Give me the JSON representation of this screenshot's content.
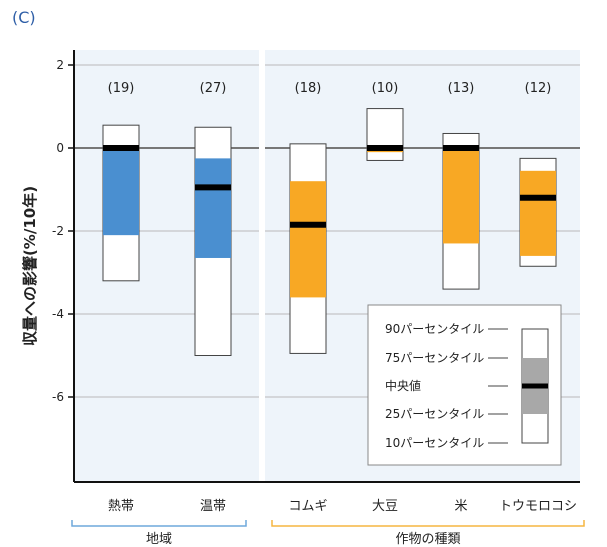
{
  "panel_label": "(C)",
  "chart_data": {
    "type": "box",
    "ylabel": "収量への影響(%/10年)",
    "ylim": [
      -8,
      2.4
    ],
    "yticks": [
      2,
      0,
      -2,
      -4,
      -6
    ],
    "categories": [
      "熱帯",
      "温帯",
      "コムギ",
      "大豆",
      "米",
      "トウモロコシ"
    ],
    "groups": [
      {
        "label": "地域",
        "categories": [
          "熱帯",
          "温帯"
        ],
        "color": "#6fa8dc"
      },
      {
        "label": "作物の種類",
        "categories": [
          "コムギ",
          "大豆",
          "米",
          "トウモロコシ"
        ],
        "color": "#f5b640"
      }
    ],
    "counts": [
      "(19)",
      "(27)",
      "(18)",
      "(10)",
      "(13)",
      "(12)"
    ],
    "boxes": [
      {
        "name": "熱帯",
        "p10": -3.2,
        "p25": -2.1,
        "median": 0.0,
        "p75": 0.0,
        "p90": 0.55,
        "color": "#4a8fd0"
      },
      {
        "name": "温帯",
        "p10": -5.0,
        "p25": -2.65,
        "median": -0.95,
        "p75": -0.25,
        "p90": 0.5,
        "color": "#4a8fd0"
      },
      {
        "name": "コムギ",
        "p10": -4.95,
        "p25": -3.6,
        "median": -1.85,
        "p75": -0.8,
        "p90": 0.1,
        "color": "#f8a824"
      },
      {
        "name": "大豆",
        "p10": -0.3,
        "p25": -0.1,
        "median": 0.0,
        "p75": 0.05,
        "p90": 0.95,
        "color": "#f8a824"
      },
      {
        "name": "米",
        "p10": -3.4,
        "p25": -2.3,
        "median": 0.0,
        "p75": 0.0,
        "p90": 0.35,
        "color": "#f8a824"
      },
      {
        "name": "トウモロコシ",
        "p10": -2.85,
        "p25": -2.6,
        "median": -1.2,
        "p75": -0.55,
        "p90": -0.25,
        "color": "#f8a824"
      }
    ],
    "legend": {
      "items": [
        "90パーセンタイル",
        "75パーセンタイル",
        "中央値",
        "25パーセンタイル",
        "10パーセンタイル"
      ],
      "box_color": "#a8a8a8"
    },
    "grid": true
  }
}
